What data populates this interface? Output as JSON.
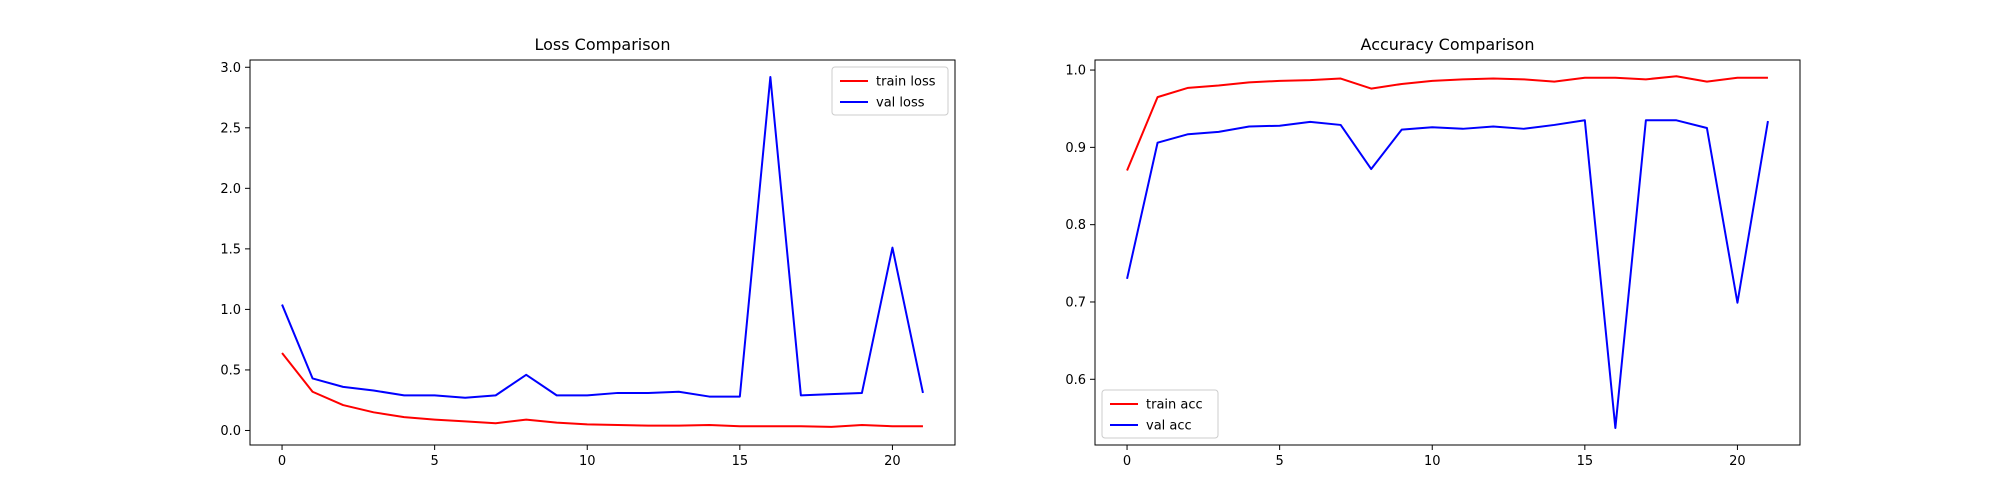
{
  "chart_data": [
    {
      "type": "line",
      "title": "Loss Comparison",
      "xlabel": "",
      "ylabel": "",
      "x": [
        0,
        1,
        2,
        3,
        4,
        5,
        6,
        7,
        8,
        9,
        10,
        11,
        12,
        13,
        14,
        15,
        16,
        17,
        18,
        19,
        20,
        21
      ],
      "xlim": [
        -1.05,
        22.05
      ],
      "ylim": [
        -0.12,
        3.06
      ],
      "xticks": [
        0,
        5,
        10,
        15,
        20
      ],
      "yticks": [
        0.0,
        0.5,
        1.0,
        1.5,
        2.0,
        2.5,
        3.0
      ],
      "ytick_labels": [
        "0.0",
        "0.5",
        "1.0",
        "1.5",
        "2.0",
        "2.5",
        "3.0"
      ],
      "legend_position": "top-right",
      "grid": false,
      "series": [
        {
          "name": "train loss",
          "color": "#ff0000",
          "values": [
            0.64,
            0.32,
            0.21,
            0.15,
            0.11,
            0.09,
            0.075,
            0.06,
            0.09,
            0.065,
            0.05,
            0.045,
            0.04,
            0.04,
            0.045,
            0.035,
            0.035,
            0.035,
            0.03,
            0.045,
            0.035,
            0.035
          ]
        },
        {
          "name": "val loss",
          "color": "#0000ff",
          "values": [
            1.04,
            0.43,
            0.36,
            0.33,
            0.29,
            0.29,
            0.27,
            0.29,
            0.46,
            0.29,
            0.29,
            0.31,
            0.31,
            0.32,
            0.28,
            0.28,
            2.92,
            0.29,
            0.3,
            0.31,
            1.51,
            0.31
          ]
        }
      ]
    },
    {
      "type": "line",
      "title": "Accuracy Comparison",
      "xlabel": "",
      "ylabel": "",
      "x": [
        0,
        1,
        2,
        3,
        4,
        5,
        6,
        7,
        8,
        9,
        10,
        11,
        12,
        13,
        14,
        15,
        16,
        17,
        18,
        19,
        20,
        21
      ],
      "xlim": [
        -1.05,
        22.05
      ],
      "ylim": [
        0.515,
        1.013
      ],
      "xticks": [
        0,
        5,
        10,
        15,
        20
      ],
      "yticks": [
        0.6,
        0.7,
        0.8,
        0.9,
        1.0
      ],
      "ytick_labels": [
        "0.6",
        "0.7",
        "0.8",
        "0.9",
        "1.0"
      ],
      "legend_position": "bottom-left",
      "grid": false,
      "series": [
        {
          "name": "train acc",
          "color": "#ff0000",
          "values": [
            0.87,
            0.965,
            0.977,
            0.98,
            0.984,
            0.986,
            0.987,
            0.989,
            0.976,
            0.982,
            0.986,
            0.988,
            0.989,
            0.988,
            0.985,
            0.99,
            0.99,
            0.988,
            0.992,
            0.985,
            0.99,
            0.99
          ]
        },
        {
          "name": "val acc",
          "color": "#0000ff",
          "values": [
            0.73,
            0.906,
            0.917,
            0.92,
            0.927,
            0.928,
            0.933,
            0.929,
            0.872,
            0.923,
            0.926,
            0.924,
            0.927,
            0.924,
            0.929,
            0.935,
            0.537,
            0.935,
            0.935,
            0.925,
            0.699,
            0.934
          ]
        }
      ]
    }
  ]
}
